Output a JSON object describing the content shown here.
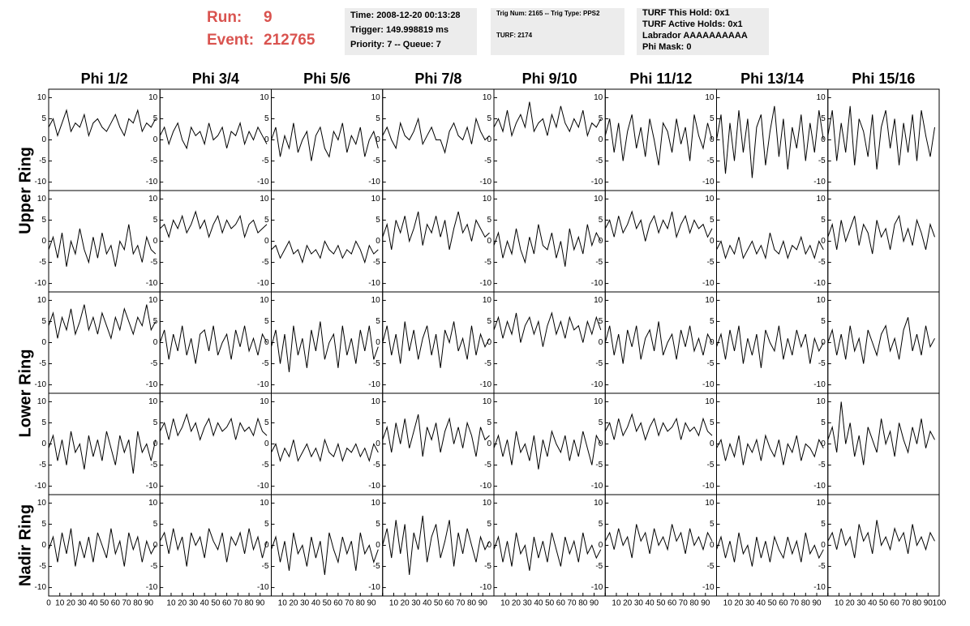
{
  "header": {
    "run_label": "Run:",
    "run": "9",
    "event_label": "Event:",
    "event": "212765",
    "boxes": [
      [
        "Time: 2008-12-20 00:13:28",
        "Trigger: 149.998819 ms",
        "Priority: 7 -- Queue: 7"
      ],
      [
        "Trig Num: 2165 -- Trig Type: PPS2",
        "TURF: 2174"
      ],
      [
        "TURF This Hold: 0x1",
        "TURF Active Holds: 0x1",
        "Labrador AAAAAAAAAA",
        "Phi Mask: 0"
      ]
    ]
  },
  "chart_data": {
    "type": "waveform-grid",
    "columns": [
      "Phi 1/2",
      "Phi 3/4",
      "Phi 5/6",
      "Phi 7/8",
      "Phi 9/10",
      "Phi 11/12",
      "Phi 13/14",
      "Phi 15/16"
    ],
    "row_labels": [
      "Upper Ring",
      "Lower Ring",
      "Nadir Ring"
    ],
    "color": "#000000",
    "xlim": [
      0,
      100
    ],
    "ylim": [
      -12,
      12
    ],
    "xticks": [
      0,
      10,
      20,
      30,
      40,
      50,
      60,
      70,
      80,
      90,
      100
    ],
    "yticks": [
      -10,
      -5,
      0,
      5,
      10
    ],
    "x": [
      0,
      4,
      8,
      12,
      16,
      20,
      24,
      28,
      32,
      36,
      40,
      44,
      48,
      52,
      56,
      60,
      64,
      68,
      72,
      76,
      80,
      84,
      88,
      92,
      96
    ],
    "panels": [
      [
        [
          3,
          5,
          1,
          4,
          7,
          2,
          4,
          3,
          6,
          1,
          4,
          5,
          3,
          2,
          4,
          6,
          3,
          1,
          5,
          4,
          7,
          2,
          4,
          3,
          5
        ],
        [
          1,
          3,
          -1,
          2,
          4,
          0,
          -2,
          3,
          1,
          2,
          -1,
          4,
          0,
          1,
          3,
          -2,
          2,
          1,
          4,
          -1,
          2,
          0,
          3,
          1,
          -1
        ],
        [
          0,
          3,
          -4,
          1,
          -2,
          4,
          -3,
          0,
          2,
          -5,
          1,
          3,
          -2,
          -4,
          2,
          0,
          4,
          -3,
          1,
          -1,
          3,
          -4,
          0,
          2,
          -2
        ],
        [
          1,
          3,
          0,
          -2,
          4,
          1,
          0,
          2,
          5,
          -1,
          1,
          3,
          0,
          0,
          -3,
          2,
          4,
          1,
          0,
          3,
          -1,
          5,
          2,
          0,
          1
        ],
        [
          3,
          5,
          2,
          7,
          1,
          4,
          6,
          3,
          9,
          2,
          4,
          5,
          1,
          6,
          3,
          8,
          4,
          2,
          5,
          3,
          7,
          1,
          4,
          3,
          5
        ],
        [
          1,
          5,
          -3,
          4,
          -5,
          2,
          6,
          -2,
          3,
          -4,
          5,
          0,
          -6,
          4,
          2,
          -3,
          5,
          -1,
          3,
          -5,
          6,
          1,
          -2,
          4,
          0
        ],
        [
          0,
          6,
          -8,
          4,
          -5,
          7,
          -3,
          5,
          -9,
          3,
          6,
          -6,
          2,
          8,
          -4,
          5,
          -7,
          3,
          -2,
          6,
          -5,
          4,
          -3,
          7,
          0
        ],
        [
          1,
          7,
          -5,
          4,
          -3,
          8,
          -6,
          5,
          2,
          -4,
          6,
          -7,
          3,
          7,
          -2,
          5,
          -6,
          4,
          -3,
          6,
          -5,
          7,
          1,
          -4,
          3
        ]
      ],
      [
        [
          -2,
          1,
          -4,
          2,
          -6,
          0,
          -3,
          3,
          -2,
          -5,
          1,
          -4,
          2,
          -3,
          -1,
          -6,
          0,
          -2,
          4,
          -3,
          -1,
          -5,
          1,
          -2,
          -3
        ],
        [
          3,
          4,
          1,
          5,
          3,
          6,
          2,
          4,
          7,
          3,
          5,
          1,
          4,
          6,
          2,
          5,
          3,
          4,
          6,
          1,
          4,
          5,
          2,
          3,
          4
        ],
        [
          -2,
          -1,
          -4,
          -2,
          0,
          -3,
          -2,
          -5,
          -1,
          -3,
          -2,
          -4,
          0,
          -2,
          -3,
          -1,
          -4,
          -2,
          -3,
          0,
          -2,
          -5,
          -1,
          -3,
          -2
        ],
        [
          1,
          4,
          -2,
          5,
          2,
          6,
          0,
          3,
          7,
          -1,
          4,
          2,
          6,
          1,
          5,
          -2,
          3,
          7,
          2,
          4,
          0,
          5,
          3,
          1,
          2
        ],
        [
          -1,
          2,
          -4,
          0,
          -3,
          3,
          -2,
          -5,
          1,
          -3,
          4,
          -1,
          -2,
          2,
          -4,
          0,
          -6,
          3,
          -2,
          1,
          -3,
          4,
          -1,
          2,
          0
        ],
        [
          3,
          5,
          1,
          6,
          2,
          4,
          7,
          3,
          5,
          0,
          4,
          6,
          2,
          5,
          3,
          7,
          1,
          4,
          6,
          2,
          5,
          3,
          4,
          1,
          3
        ],
        [
          -2,
          0,
          -4,
          -1,
          -3,
          1,
          -4,
          -2,
          0,
          -3,
          -1,
          -4,
          2,
          -2,
          -3,
          0,
          -4,
          -1,
          -2,
          1,
          -3,
          -1,
          -4,
          0,
          -2
        ],
        [
          1,
          4,
          -2,
          5,
          0,
          3,
          6,
          -1,
          4,
          2,
          -3,
          5,
          1,
          3,
          -2,
          4,
          6,
          0,
          3,
          -1,
          5,
          2,
          -2,
          4,
          1
        ]
      ],
      [
        [
          4,
          7,
          1,
          6,
          3,
          8,
          2,
          5,
          9,
          3,
          6,
          2,
          7,
          4,
          1,
          6,
          3,
          8,
          5,
          2,
          6,
          4,
          9,
          3,
          5
        ],
        [
          0,
          3,
          -4,
          2,
          -2,
          4,
          -3,
          1,
          -5,
          2,
          3,
          -2,
          4,
          -3,
          0,
          2,
          -4,
          3,
          -1,
          4,
          -2,
          1,
          -3,
          2,
          0
        ],
        [
          -1,
          3,
          -5,
          2,
          -7,
          4,
          -3,
          1,
          -6,
          3,
          -2,
          5,
          -4,
          0,
          2,
          -6,
          4,
          -3,
          1,
          -5,
          3,
          -2,
          4,
          -4,
          -1
        ],
        [
          0,
          4,
          -3,
          2,
          -5,
          5,
          -2,
          3,
          -4,
          1,
          4,
          -3,
          2,
          -6,
          3,
          0,
          5,
          -2,
          1,
          -4,
          4,
          -3,
          2,
          -1,
          1
        ],
        [
          3,
          6,
          1,
          5,
          2,
          7,
          0,
          4,
          6,
          2,
          5,
          -1,
          4,
          7,
          2,
          5,
          1,
          6,
          3,
          4,
          0,
          5,
          2,
          6,
          3
        ],
        [
          0,
          4,
          -3,
          2,
          -5,
          3,
          -1,
          4,
          -4,
          1,
          3,
          -2,
          5,
          -3,
          0,
          2,
          -4,
          3,
          -1,
          4,
          -2,
          1,
          -3,
          2,
          0
        ],
        [
          -1,
          2,
          -4,
          3,
          -2,
          4,
          -5,
          1,
          -3,
          2,
          -6,
          3,
          0,
          -2,
          4,
          -4,
          1,
          -3,
          3,
          -1,
          2,
          -5,
          1,
          -2,
          0
        ],
        [
          0,
          3,
          -3,
          2,
          -4,
          4,
          -2,
          1,
          -5,
          3,
          0,
          -3,
          2,
          4,
          -2,
          1,
          -4,
          3,
          6,
          -2,
          2,
          -3,
          4,
          -1,
          1
        ]
      ],
      [
        [
          -1,
          2,
          -4,
          1,
          -5,
          3,
          -2,
          0,
          -6,
          2,
          -3,
          1,
          -4,
          3,
          -1,
          -5,
          2,
          -2,
          1,
          -7,
          3,
          -2,
          0,
          -4,
          1
        ],
        [
          3,
          5,
          1,
          6,
          2,
          4,
          7,
          3,
          5,
          1,
          4,
          6,
          2,
          5,
          3,
          4,
          6,
          1,
          5,
          3,
          4,
          2,
          6,
          3,
          2
        ],
        [
          -2,
          0,
          -4,
          -1,
          -3,
          1,
          -4,
          -2,
          0,
          -3,
          -1,
          -4,
          1,
          -2,
          -3,
          0,
          -4,
          -1,
          -2,
          0,
          -3,
          -1,
          -4,
          0,
          -2
        ],
        [
          1,
          4,
          -2,
          5,
          0,
          6,
          -1,
          3,
          7,
          -3,
          4,
          1,
          5,
          -2,
          3,
          6,
          0,
          4,
          -1,
          5,
          2,
          -3,
          4,
          1,
          2
        ],
        [
          -1,
          2,
          -3,
          1,
          -5,
          3,
          -2,
          0,
          -4,
          2,
          -6,
          1,
          -3,
          3,
          0,
          -2,
          2,
          -4,
          1,
          -3,
          3,
          -1,
          -5,
          2,
          0
        ],
        [
          3,
          5,
          1,
          6,
          2,
          4,
          7,
          3,
          5,
          1,
          4,
          6,
          2,
          5,
          3,
          4,
          6,
          1,
          5,
          3,
          4,
          2,
          6,
          3,
          2
        ],
        [
          -1,
          1,
          -4,
          0,
          -3,
          2,
          -5,
          0,
          -2,
          1,
          -4,
          2,
          -1,
          -3,
          1,
          -5,
          0,
          -2,
          2,
          -4,
          0,
          -1,
          -3,
          1,
          -1
        ],
        [
          1,
          4,
          -2,
          10,
          0,
          5,
          -3,
          2,
          -5,
          4,
          1,
          -2,
          6,
          0,
          3,
          -3,
          5,
          1,
          -2,
          4,
          0,
          6,
          -1,
          3,
          1
        ]
      ],
      [
        [
          -1,
          2,
          -4,
          3,
          -2,
          4,
          -5,
          1,
          -3,
          2,
          -4,
          3,
          0,
          -3,
          4,
          -2,
          1,
          -5,
          3,
          -1,
          2,
          -4,
          1,
          -2,
          0
        ],
        [
          1,
          3,
          -2,
          4,
          -1,
          2,
          -5,
          3,
          0,
          2,
          -3,
          4,
          1,
          -1,
          3,
          -4,
          2,
          0,
          3,
          -2,
          4,
          -1,
          2,
          -3,
          1
        ],
        [
          -1,
          2,
          -4,
          1,
          -6,
          3,
          -2,
          0,
          -5,
          2,
          -3,
          1,
          -7,
          3,
          -1,
          -4,
          2,
          -2,
          1,
          -6,
          3,
          -2,
          0,
          -4,
          -1
        ],
        [
          0,
          4,
          -3,
          6,
          -2,
          5,
          -7,
          3,
          -1,
          7,
          -4,
          2,
          5,
          -3,
          1,
          6,
          -5,
          3,
          -2,
          4,
          0,
          -4,
          2,
          -1,
          1
        ],
        [
          -1,
          2,
          -4,
          1,
          -5,
          3,
          -2,
          0,
          -6,
          2,
          -3,
          1,
          -4,
          3,
          -1,
          -5,
          2,
          -2,
          1,
          -4,
          3,
          -2,
          0,
          -3,
          -1
        ],
        [
          1,
          3,
          -1,
          4,
          0,
          2,
          -3,
          5,
          1,
          3,
          -2,
          4,
          0,
          2,
          -1,
          5,
          1,
          3,
          -2,
          4,
          0,
          2,
          -1,
          3,
          1
        ],
        [
          -1,
          2,
          -3,
          1,
          -4,
          3,
          -2,
          0,
          -5,
          2,
          -3,
          1,
          -4,
          2,
          -1,
          -3,
          2,
          -2,
          1,
          -4,
          3,
          -2,
          0,
          -3,
          -1
        ],
        [
          1,
          3,
          -1,
          4,
          0,
          2,
          -3,
          5,
          1,
          3,
          -2,
          6,
          0,
          2,
          -1,
          4,
          1,
          3,
          -2,
          5,
          0,
          2,
          -1,
          3,
          1
        ]
      ]
    ]
  }
}
